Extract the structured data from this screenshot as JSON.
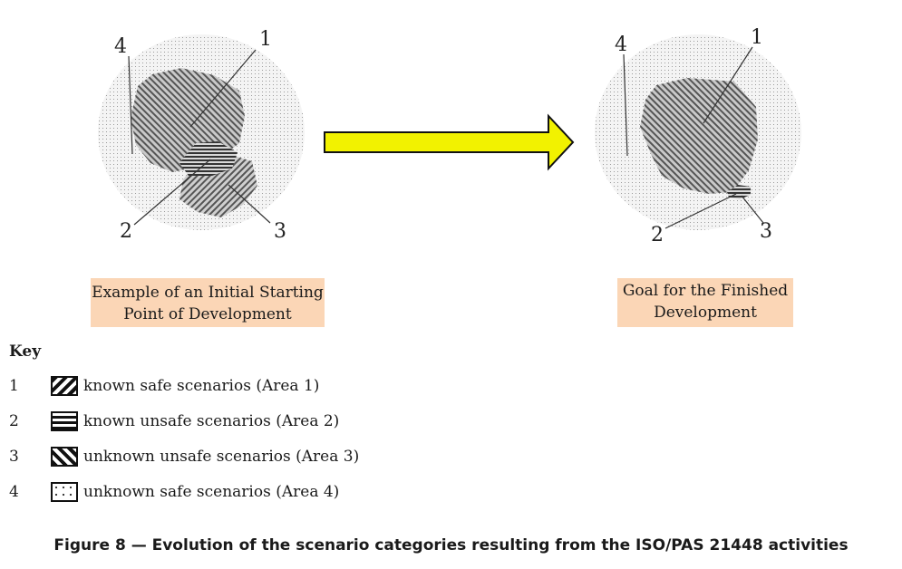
{
  "diagram": {
    "left_labels": {
      "area1": "1",
      "area2": "2",
      "area3": "3",
      "area4": "4"
    },
    "right_labels": {
      "area1": "1",
      "area2": "2",
      "area3": "3",
      "area4": "4"
    },
    "arrow_color": "#f2f200",
    "left_caption": [
      "Example of an Initial Starting",
      "Point of Development"
    ],
    "right_caption": [
      "Goal for the Finished",
      "Development"
    ]
  },
  "key": {
    "title": "Key",
    "items": [
      {
        "num": "1",
        "pattern": "diagonal-hatch-thick",
        "label": "known safe scenarios (Area 1)"
      },
      {
        "num": "2",
        "pattern": "horizontal-lines",
        "label": "known unsafe scenarios (Area 2)"
      },
      {
        "num": "3",
        "pattern": "diagonal-hatch-reverse",
        "label": "unknown unsafe scenarios (Area 3)"
      },
      {
        "num": "4",
        "pattern": "dotted",
        "label": "unknown safe scenarios (Area 4)"
      }
    ]
  },
  "figure_caption": "Figure 8 — Evolution of the scenario categories resulting from the ISO/PAS 21448 activities"
}
